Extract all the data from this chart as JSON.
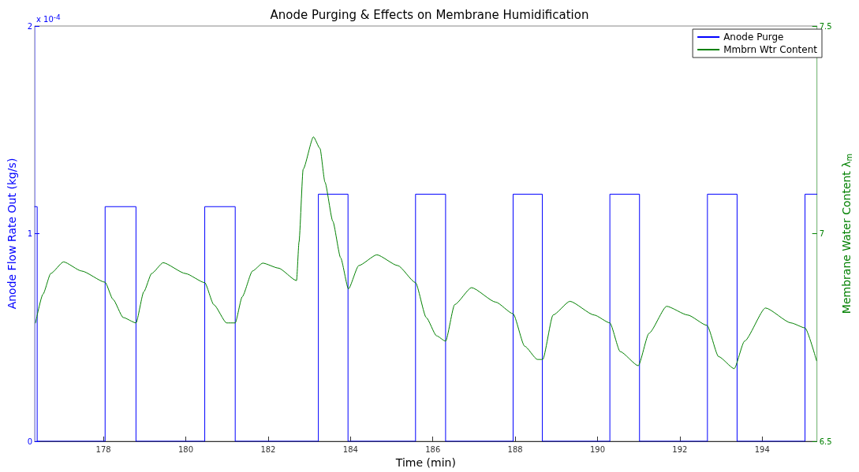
{
  "chart_data": {
    "type": "line",
    "title": "Anode Purging & Effects on Membrane Humidification",
    "xlabel": "Time (min)",
    "ylabel": "Anode Flow Rate Out (kg/s)",
    "y2label": "Membrane Water Content λ$_{m}$",
    "annotations": [
      "x 10$^{-4}$"
    ],
    "xlim": [
      176.33,
      195.33
    ],
    "xticks": [
      178,
      180,
      182,
      184,
      186,
      188,
      190,
      192,
      194
    ],
    "ylim": [
      0,
      2
    ],
    "yticks": [
      0,
      1,
      2
    ],
    "y2lim": [
      6.5,
      7.5
    ],
    "y2ticks": [
      6.5,
      7,
      7.5
    ],
    "grid": false,
    "legend": "top right",
    "marker": "none",
    "line_style": "solid",
    "series": [
      {
        "name": "Anode Purge",
        "color": "#0000ff",
        "x": [
          176.33,
          176.39,
          176.39,
          178.04,
          178.04,
          178.79,
          178.79,
          180.46,
          180.46,
          181.2,
          181.2,
          183.22,
          183.22,
          183.94,
          183.94,
          185.58,
          185.58,
          186.31,
          186.31,
          187.95,
          187.95,
          188.66,
          188.66,
          190.3,
          190.3,
          191.02,
          191.02,
          192.67,
          192.67,
          193.39,
          193.39,
          195.04,
          195.04,
          195.33
        ],
        "values": [
          1.13,
          1.13,
          0,
          0,
          1.13,
          1.13,
          0,
          0,
          1.13,
          1.13,
          0,
          0,
          1.19,
          1.19,
          0,
          0,
          1.19,
          1.19,
          0,
          0,
          1.19,
          1.19,
          0,
          0,
          1.19,
          1.19,
          0,
          0,
          1.19,
          1.19,
          0,
          0,
          1.19,
          1.19
        ]
      },
      {
        "name": "Mmbrn Wtr Content",
        "color": "#008000",
        "axis": "y2",
        "x": [
          176.35,
          176.53,
          176.72,
          177.03,
          177.47,
          178.04,
          178.23,
          178.48,
          178.79,
          178.98,
          179.17,
          179.45,
          179.99,
          180.46,
          180.68,
          180.99,
          181.2,
          181.37,
          181.62,
          181.87,
          182.25,
          182.69,
          182.75,
          182.85,
          183.1,
          183.26,
          183.38,
          183.57,
          183.76,
          183.95,
          184.2,
          184.64,
          185.15,
          185.58,
          185.84,
          186.09,
          186.31,
          186.53,
          186.94,
          187.53,
          187.95,
          188.23,
          188.54,
          188.67,
          188.92,
          189.33,
          189.92,
          190.3,
          190.55,
          190.99,
          191.25,
          191.68,
          192.19,
          192.66,
          192.94,
          193.32,
          193.57,
          194.08,
          194.7,
          195.04,
          195.32
        ],
        "values": [
          6.785,
          6.854,
          6.904,
          6.932,
          6.91,
          6.883,
          6.842,
          6.798,
          6.785,
          6.86,
          6.904,
          6.93,
          6.904,
          6.882,
          6.829,
          6.785,
          6.785,
          6.848,
          6.91,
          6.929,
          6.917,
          6.887,
          6.98,
          7.155,
          7.233,
          7.205,
          7.124,
          7.03,
          6.942,
          6.867,
          6.923,
          6.949,
          6.923,
          6.882,
          6.798,
          6.754,
          6.741,
          6.829,
          6.87,
          6.835,
          6.807,
          6.729,
          6.697,
          6.697,
          6.804,
          6.837,
          6.804,
          6.785,
          6.716,
          6.682,
          6.76,
          6.825,
          6.804,
          6.779,
          6.704,
          6.675,
          6.741,
          6.821,
          6.785,
          6.773,
          6.694
        ]
      }
    ]
  }
}
